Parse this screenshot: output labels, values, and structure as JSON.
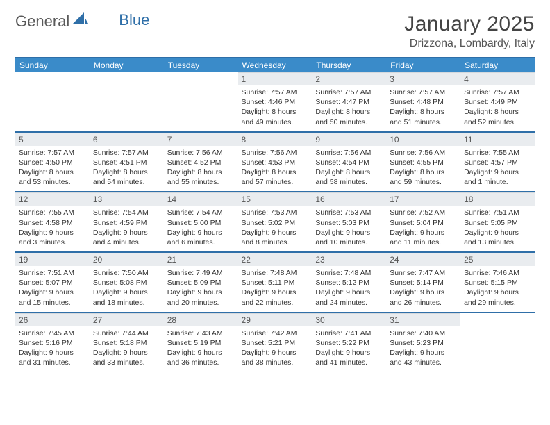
{
  "brand": {
    "part1": "General",
    "part2": "Blue"
  },
  "title": "January 2025",
  "location": "Drizzona, Lombardy, Italy",
  "colors": {
    "header_bg": "#3a8bc9",
    "accent_line": "#2f6fa8",
    "daynum_bg": "#e9ecef",
    "text": "#333333"
  },
  "day_names": [
    "Sunday",
    "Monday",
    "Tuesday",
    "Wednesday",
    "Thursday",
    "Friday",
    "Saturday"
  ],
  "weeks": [
    [
      null,
      null,
      null,
      {
        "n": "1",
        "sunrise": "7:57 AM",
        "sunset": "4:46 PM",
        "day_h": "8",
        "day_m": "49"
      },
      {
        "n": "2",
        "sunrise": "7:57 AM",
        "sunset": "4:47 PM",
        "day_h": "8",
        "day_m": "50"
      },
      {
        "n": "3",
        "sunrise": "7:57 AM",
        "sunset": "4:48 PM",
        "day_h": "8",
        "day_m": "51"
      },
      {
        "n": "4",
        "sunrise": "7:57 AM",
        "sunset": "4:49 PM",
        "day_h": "8",
        "day_m": "52"
      }
    ],
    [
      {
        "n": "5",
        "sunrise": "7:57 AM",
        "sunset": "4:50 PM",
        "day_h": "8",
        "day_m": "53"
      },
      {
        "n": "6",
        "sunrise": "7:57 AM",
        "sunset": "4:51 PM",
        "day_h": "8",
        "day_m": "54"
      },
      {
        "n": "7",
        "sunrise": "7:56 AM",
        "sunset": "4:52 PM",
        "day_h": "8",
        "day_m": "55"
      },
      {
        "n": "8",
        "sunrise": "7:56 AM",
        "sunset": "4:53 PM",
        "day_h": "8",
        "day_m": "57"
      },
      {
        "n": "9",
        "sunrise": "7:56 AM",
        "sunset": "4:54 PM",
        "day_h": "8",
        "day_m": "58"
      },
      {
        "n": "10",
        "sunrise": "7:56 AM",
        "sunset": "4:55 PM",
        "day_h": "8",
        "day_m": "59"
      },
      {
        "n": "11",
        "sunrise": "7:55 AM",
        "sunset": "4:57 PM",
        "day_h": "9",
        "day_m": "1",
        "suffix": "minute"
      }
    ],
    [
      {
        "n": "12",
        "sunrise": "7:55 AM",
        "sunset": "4:58 PM",
        "day_h": "9",
        "day_m": "3"
      },
      {
        "n": "13",
        "sunrise": "7:54 AM",
        "sunset": "4:59 PM",
        "day_h": "9",
        "day_m": "4"
      },
      {
        "n": "14",
        "sunrise": "7:54 AM",
        "sunset": "5:00 PM",
        "day_h": "9",
        "day_m": "6"
      },
      {
        "n": "15",
        "sunrise": "7:53 AM",
        "sunset": "5:02 PM",
        "day_h": "9",
        "day_m": "8"
      },
      {
        "n": "16",
        "sunrise": "7:53 AM",
        "sunset": "5:03 PM",
        "day_h": "9",
        "day_m": "10"
      },
      {
        "n": "17",
        "sunrise": "7:52 AM",
        "sunset": "5:04 PM",
        "day_h": "9",
        "day_m": "11"
      },
      {
        "n": "18",
        "sunrise": "7:51 AM",
        "sunset": "5:05 PM",
        "day_h": "9",
        "day_m": "13"
      }
    ],
    [
      {
        "n": "19",
        "sunrise": "7:51 AM",
        "sunset": "5:07 PM",
        "day_h": "9",
        "day_m": "15"
      },
      {
        "n": "20",
        "sunrise": "7:50 AM",
        "sunset": "5:08 PM",
        "day_h": "9",
        "day_m": "18"
      },
      {
        "n": "21",
        "sunrise": "7:49 AM",
        "sunset": "5:09 PM",
        "day_h": "9",
        "day_m": "20"
      },
      {
        "n": "22",
        "sunrise": "7:48 AM",
        "sunset": "5:11 PM",
        "day_h": "9",
        "day_m": "22"
      },
      {
        "n": "23",
        "sunrise": "7:48 AM",
        "sunset": "5:12 PM",
        "day_h": "9",
        "day_m": "24"
      },
      {
        "n": "24",
        "sunrise": "7:47 AM",
        "sunset": "5:14 PM",
        "day_h": "9",
        "day_m": "26"
      },
      {
        "n": "25",
        "sunrise": "7:46 AM",
        "sunset": "5:15 PM",
        "day_h": "9",
        "day_m": "29"
      }
    ],
    [
      {
        "n": "26",
        "sunrise": "7:45 AM",
        "sunset": "5:16 PM",
        "day_h": "9",
        "day_m": "31"
      },
      {
        "n": "27",
        "sunrise": "7:44 AM",
        "sunset": "5:18 PM",
        "day_h": "9",
        "day_m": "33"
      },
      {
        "n": "28",
        "sunrise": "7:43 AM",
        "sunset": "5:19 PM",
        "day_h": "9",
        "day_m": "36"
      },
      {
        "n": "29",
        "sunrise": "7:42 AM",
        "sunset": "5:21 PM",
        "day_h": "9",
        "day_m": "38"
      },
      {
        "n": "30",
        "sunrise": "7:41 AM",
        "sunset": "5:22 PM",
        "day_h": "9",
        "day_m": "41"
      },
      {
        "n": "31",
        "sunrise": "7:40 AM",
        "sunset": "5:23 PM",
        "day_h": "9",
        "day_m": "43"
      },
      null
    ]
  ]
}
